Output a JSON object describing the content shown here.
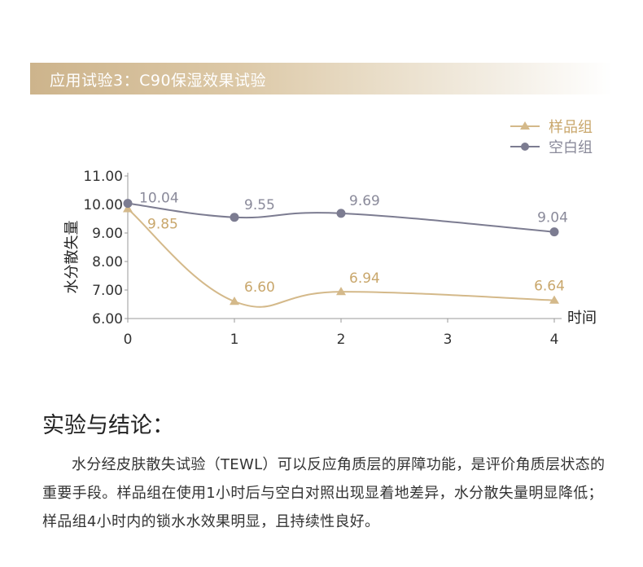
{
  "header": {
    "title": "应用试验3：C90保湿效果试验"
  },
  "chart_data": {
    "type": "line",
    "ylabel": "水分散失量",
    "xlabel": "时间",
    "x": [
      0,
      1,
      2,
      3,
      4
    ],
    "x_tick_labels": [
      "0",
      "1",
      "2",
      "3",
      "4"
    ],
    "y_tick_labels": [
      "11.00",
      "10.00",
      "9.00",
      "8.00",
      "7.00",
      "6.00"
    ],
    "ylim": [
      6,
      11
    ],
    "xlim": [
      0,
      4
    ],
    "grid": false,
    "legend_position": "top-right",
    "series": [
      {
        "name": "样品组",
        "marker": "triangle",
        "color": "#d4b98a",
        "label_color": "#c9a76c",
        "points": [
          [
            0,
            9.85
          ],
          [
            1,
            6.6
          ],
          [
            2,
            6.94
          ],
          [
            4,
            6.64
          ]
        ],
        "labels": [
          "9.85",
          "6.60",
          "6.94",
          "6.64"
        ]
      },
      {
        "name": "空白组",
        "marker": "circle",
        "color": "#7c7c91",
        "label_color": "#8a8a9a",
        "points": [
          [
            0,
            10.04
          ],
          [
            1,
            9.55
          ],
          [
            2,
            9.69
          ],
          [
            4,
            9.04
          ]
        ],
        "labels": [
          "10.04",
          "9.55",
          "9.69",
          "9.04"
        ]
      }
    ]
  },
  "conclusion": {
    "title": "实验与结论：",
    "text": "水分经皮肤散失试验（TEWL）可以反应角质层的屏障功能，是评价角质层状态的重要手段。样品组在使用1小时后与空白对照出现显着地差异，水分散失量明显降低；样品组4小时内的锁水水效果明显，且持续性良好。"
  }
}
